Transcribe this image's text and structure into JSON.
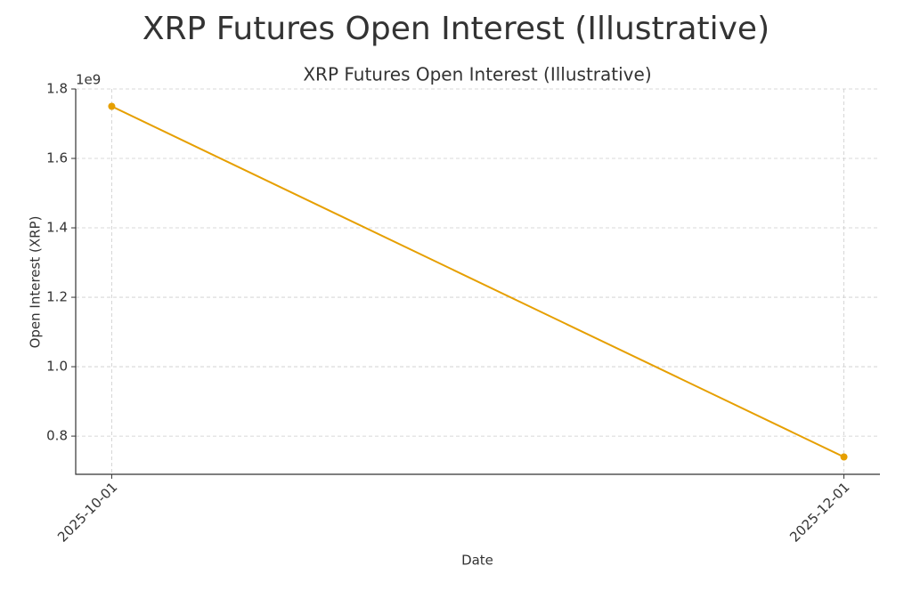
{
  "chart_data": {
    "type": "line",
    "title": "XRP Futures Open Interest (Illustrative)",
    "subtitle": "XRP Futures Open Interest (Illustrative)",
    "x_label": "Date",
    "y_label": "Open Interest (XRP)",
    "y_offset_label": "1e9",
    "x": [
      "2025-10-01",
      "2025-12-01"
    ],
    "values": [
      1750000000,
      740000000
    ],
    "color": "#e69f00",
    "xlim": [
      "2025-09-28",
      "2025-12-04"
    ],
    "xticks": [
      "2025-10-01",
      "2025-12-01"
    ],
    "ylim": [
      690000000,
      1800000000
    ],
    "yticks": [
      {
        "value": 800000000,
        "label": "0.8"
      },
      {
        "value": 1000000000,
        "label": "1.0"
      },
      {
        "value": 1200000000,
        "label": "1.2"
      },
      {
        "value": 1400000000,
        "label": "1.4"
      },
      {
        "value": 1600000000,
        "label": "1.6"
      },
      {
        "value": 1800000000,
        "label": "1.8"
      }
    ],
    "grid": true,
    "markers": true
  }
}
